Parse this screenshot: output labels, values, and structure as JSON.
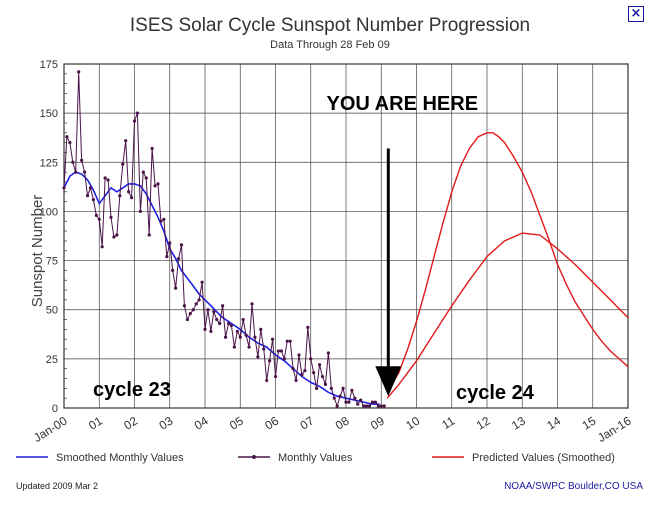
{
  "window": {
    "close_label": "×"
  },
  "chart_data": {
    "type": "line",
    "title": "ISES Solar Cycle Sunspot Number Progression",
    "subtitle": "Data Through 28 Feb 09",
    "ylabel": "Sunspot Number",
    "ylim": [
      0,
      175
    ],
    "yticks": [
      0,
      25,
      50,
      75,
      100,
      125,
      150,
      175
    ],
    "xlim": [
      2000.0,
      2016.0
    ],
    "xticks": [
      {
        "x": 2000,
        "label": "Jan-00"
      },
      {
        "x": 2001,
        "label": "01"
      },
      {
        "x": 2002,
        "label": "02"
      },
      {
        "x": 2003,
        "label": "03"
      },
      {
        "x": 2004,
        "label": "04"
      },
      {
        "x": 2005,
        "label": "05"
      },
      {
        "x": 2006,
        "label": "06"
      },
      {
        "x": 2007,
        "label": "07"
      },
      {
        "x": 2008,
        "label": "08"
      },
      {
        "x": 2009,
        "label": "09"
      },
      {
        "x": 2010,
        "label": "10"
      },
      {
        "x": 2011,
        "label": "11"
      },
      {
        "x": 2012,
        "label": "12"
      },
      {
        "x": 2013,
        "label": "13"
      },
      {
        "x": 2014,
        "label": "14"
      },
      {
        "x": 2015,
        "label": "15"
      },
      {
        "x": 2016,
        "label": "Jan-16"
      }
    ],
    "grid": true,
    "series": [
      {
        "name": "Smoothed Monthly Values",
        "color": "#2020e0",
        "x": [
          2000.0,
          2000.17,
          2000.33,
          2000.5,
          2000.67,
          2000.83,
          2001.0,
          2001.17,
          2001.33,
          2001.5,
          2001.67,
          2001.83,
          2002.0,
          2002.17,
          2002.33,
          2002.5,
          2002.67,
          2002.83,
          2003.0,
          2003.17,
          2003.33,
          2003.5,
          2003.67,
          2003.83,
          2004.0,
          2004.17,
          2004.33,
          2004.5,
          2004.67,
          2004.83,
          2005.0,
          2005.25,
          2005.5,
          2005.75,
          2006.0,
          2006.25,
          2006.5,
          2006.75,
          2007.0,
          2007.25,
          2007.5,
          2007.75,
          2008.0,
          2008.25,
          2008.5,
          2008.75,
          2008.95
        ],
        "values": [
          112,
          118,
          120,
          119,
          116,
          111,
          104,
          108,
          112,
          110,
          112,
          114,
          114,
          113,
          109,
          103,
          97,
          90,
          81,
          76,
          70,
          66,
          62,
          58,
          55,
          52,
          49,
          46,
          44,
          42,
          40,
          36,
          33,
          31,
          27,
          24,
          20,
          16,
          13,
          11,
          8,
          6,
          5,
          4,
          3,
          2,
          2
        ]
      },
      {
        "name": "Monthly Values",
        "color": "#4a1448",
        "x": [
          2000.0,
          2000.083,
          2000.167,
          2000.25,
          2000.333,
          2000.417,
          2000.5,
          2000.583,
          2000.667,
          2000.75,
          2000.833,
          2000.917,
          2001.0,
          2001.083,
          2001.167,
          2001.25,
          2001.333,
          2001.417,
          2001.5,
          2001.583,
          2001.667,
          2001.75,
          2001.833,
          2001.917,
          2002.0,
          2002.083,
          2002.167,
          2002.25,
          2002.333,
          2002.417,
          2002.5,
          2002.583,
          2002.667,
          2002.75,
          2002.833,
          2002.917,
          2003.0,
          2003.083,
          2003.167,
          2003.25,
          2003.333,
          2003.417,
          2003.5,
          2003.583,
          2003.667,
          2003.75,
          2003.833,
          2003.917,
          2004.0,
          2004.083,
          2004.167,
          2004.25,
          2004.333,
          2004.417,
          2004.5,
          2004.583,
          2004.667,
          2004.75,
          2004.833,
          2004.917,
          2005.0,
          2005.083,
          2005.167,
          2005.25,
          2005.333,
          2005.417,
          2005.5,
          2005.583,
          2005.667,
          2005.75,
          2005.833,
          2005.917,
          2006.0,
          2006.083,
          2006.167,
          2006.25,
          2006.333,
          2006.417,
          2006.5,
          2006.583,
          2006.667,
          2006.75,
          2006.833,
          2006.917,
          2007.0,
          2007.083,
          2007.167,
          2007.25,
          2007.333,
          2007.417,
          2007.5,
          2007.583,
          2007.667,
          2007.75,
          2007.833,
          2007.917,
          2008.0,
          2008.083,
          2008.167,
          2008.25,
          2008.333,
          2008.417,
          2008.5,
          2008.583,
          2008.667,
          2008.75,
          2008.833,
          2008.917,
          2009.0,
          2009.083
        ],
        "values": [
          112,
          138,
          135,
          125,
          120,
          171,
          126,
          120,
          108,
          112,
          106,
          98,
          96,
          82,
          117,
          116,
          97,
          87,
          88,
          108,
          124,
          136,
          110,
          107,
          146,
          150,
          100,
          120,
          117,
          88,
          132,
          113,
          114,
          95,
          96,
          77,
          84,
          70,
          61,
          76,
          83,
          52,
          45,
          48,
          50,
          53,
          55,
          64,
          40,
          50,
          39,
          49,
          45,
          43,
          52,
          36,
          43,
          42,
          31,
          39,
          36,
          45,
          37,
          31,
          53,
          36,
          26,
          40,
          30,
          14,
          24,
          35,
          16,
          29,
          29,
          25,
          34,
          34,
          20,
          14,
          27,
          17,
          19,
          41,
          25,
          18,
          10,
          22,
          16,
          12,
          28,
          10,
          5,
          1,
          6,
          10,
          3,
          3,
          9,
          5,
          2,
          4,
          1,
          1,
          1,
          3,
          3,
          1,
          1,
          1
        ]
      },
      {
        "name": "Predicted Values (Smoothed)",
        "color": "#e01a1a",
        "x": [
          2009.17,
          2009.5,
          2009.75,
          2010.0,
          2010.25,
          2010.5,
          2010.75,
          2011.0,
          2011.25,
          2011.5,
          2011.75,
          2012.0,
          2012.17,
          2012.33,
          2012.5,
          2012.75,
          2013.0,
          2013.25,
          2013.5,
          2013.75,
          2014.0,
          2014.25,
          2014.5,
          2014.75,
          2015.0,
          2015.25,
          2015.5,
          2015.75,
          2016.0
        ],
        "values": [
          8,
          18,
          30,
          44,
          60,
          77,
          94,
          110,
          123,
          132,
          138,
          140,
          140,
          138,
          135,
          128,
          120,
          110,
          98,
          86,
          73,
          63,
          54,
          47,
          40,
          34,
          29,
          25,
          21
        ]
      },
      {
        "name": "Predicted Values (Smoothed)",
        "color": "#e01a1a",
        "x": [
          2009.17,
          2009.5,
          2010.0,
          2010.5,
          2011.0,
          2011.5,
          2012.0,
          2012.5,
          2013.0,
          2013.5,
          2014.0,
          2014.5,
          2015.0,
          2015.5,
          2016.0
        ],
        "values": [
          5,
          12,
          24,
          38,
          52,
          65,
          77,
          85,
          89,
          88,
          81,
          73,
          64,
          55,
          46
        ]
      }
    ],
    "legend": [
      {
        "label": "Smoothed Monthly Values",
        "color": "#2020e0",
        "marker": false
      },
      {
        "label": "Monthly Values",
        "color": "#4a1448",
        "marker": true
      },
      {
        "label": "Predicted Values (Smoothed)",
        "color": "#e01a1a",
        "marker": false
      }
    ],
    "legend_position": "bottom",
    "annotations": {
      "arrow_text": "YOU ARE HERE",
      "cycle_23": "cycle 23",
      "cycle_24": "cycle 24",
      "arrow_x": 2009.2,
      "arrow_y_from": 132,
      "arrow_y_to": 6
    },
    "footer_left": "Updated 2009 Mar  2",
    "footer_right": "NOAA/SWPC Boulder,CO USA",
    "footer_right_color": "#1a1aa0"
  }
}
